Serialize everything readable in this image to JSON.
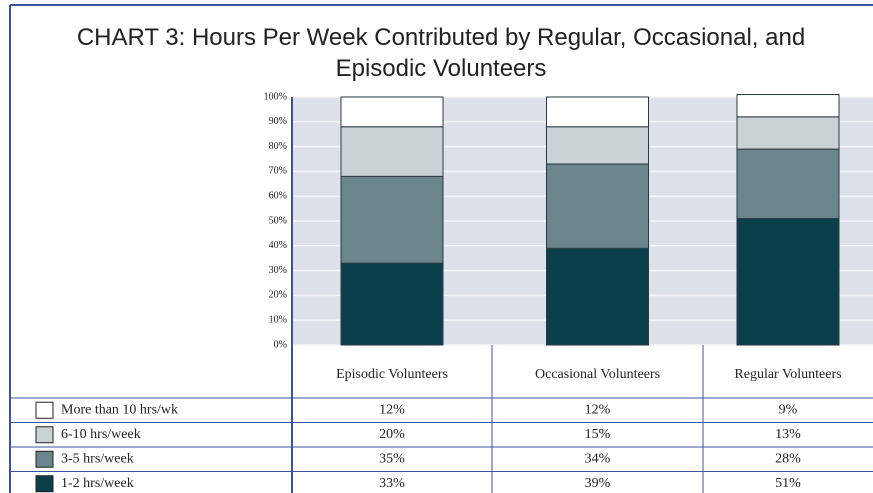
{
  "chart_data": {
    "type": "bar",
    "stacked": true,
    "title": "CHART 3: Hours Per Week Contributed by Regular, Occasional, and Episodic Volunteers",
    "categories": [
      "Episodic Volunteers",
      "Occasional Volunteers",
      "Regular Volunteers"
    ],
    "series": [
      {
        "name": "More than 10 hrs/wk",
        "color": "#ffffff",
        "values": [
          12,
          12,
          9
        ],
        "value_labels": [
          "12%",
          "12%",
          "9%"
        ]
      },
      {
        "name": "6-10 hrs/week",
        "color": "#c9d2d5",
        "values": [
          20,
          15,
          13
        ],
        "value_labels": [
          "20%",
          "15%",
          "13%"
        ]
      },
      {
        "name": "3-5 hrs/week",
        "color": "#6b858d",
        "values": [
          35,
          34,
          28
        ],
        "value_labels": [
          "35%",
          "34%",
          "28%"
        ]
      },
      {
        "name": "1-2 hrs/week",
        "color": "#0a3f4b",
        "values": [
          33,
          39,
          51
        ],
        "value_labels": [
          "33%",
          "39%",
          "51%"
        ]
      }
    ],
    "ylim": [
      0,
      100
    ],
    "yticks": [
      {
        "value": 0,
        "label": "0%"
      },
      {
        "value": 10,
        "label": "10%"
      },
      {
        "value": 20,
        "label": "20%"
      },
      {
        "value": 30,
        "label": "30%"
      },
      {
        "value": 40,
        "label": "40%"
      },
      {
        "value": 50,
        "label": "50%"
      },
      {
        "value": 60,
        "label": "60%"
      },
      {
        "value": 70,
        "label": "70%"
      },
      {
        "value": 80,
        "label": "80%"
      },
      {
        "value": 90,
        "label": "90%"
      },
      {
        "value": 100,
        "label": "100%"
      }
    ],
    "grid": true
  }
}
